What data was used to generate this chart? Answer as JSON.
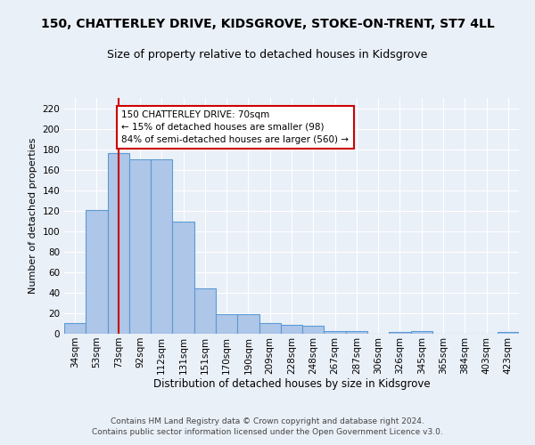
{
  "title1": "150, CHATTERLEY DRIVE, KIDSGROVE, STOKE-ON-TRENT, ST7 4LL",
  "title2": "Size of property relative to detached houses in Kidsgrove",
  "xlabel": "Distribution of detached houses by size in Kidsgrove",
  "ylabel": "Number of detached properties",
  "bar_values": [
    10,
    121,
    176,
    170,
    170,
    109,
    44,
    19,
    19,
    10,
    9,
    8,
    3,
    3,
    0,
    2,
    3,
    0,
    0,
    0,
    2
  ],
  "bin_labels": [
    "34sqm",
    "53sqm",
    "73sqm",
    "92sqm",
    "112sqm",
    "131sqm",
    "151sqm",
    "170sqm",
    "190sqm",
    "209sqm",
    "228sqm",
    "248sqm",
    "267sqm",
    "287sqm",
    "306sqm",
    "326sqm",
    "345sqm",
    "365sqm",
    "384sqm",
    "403sqm",
    "423sqm"
  ],
  "bar_color": "#aec6e8",
  "bar_edge_color": "#5b9bd5",
  "vline_x_idx": 2,
  "vline_color": "#cc0000",
  "annotation_text": "150 CHATTERLEY DRIVE: 70sqm\n← 15% of detached houses are smaller (98)\n84% of semi-detached houses are larger (560) →",
  "annotation_box_color": "#ffffff",
  "annotation_box_edge": "#cc0000",
  "ylim": [
    0,
    230
  ],
  "yticks": [
    0,
    20,
    40,
    60,
    80,
    100,
    120,
    140,
    160,
    180,
    200,
    220
  ],
  "footer1": "Contains HM Land Registry data © Crown copyright and database right 2024.",
  "footer2": "Contains public sector information licensed under the Open Government Licence v3.0.",
  "bg_color": "#eaf0f8",
  "grid_color": "#ffffff",
  "title_fontsize": 10,
  "subtitle_fontsize": 9,
  "axis_label_fontsize": 8,
  "tick_fontsize": 7.5,
  "footer_fontsize": 6.5,
  "annotation_fontsize": 7.5
}
